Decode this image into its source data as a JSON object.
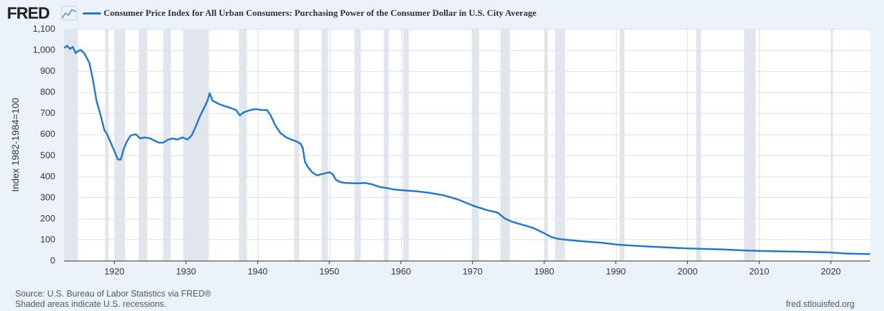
{
  "header": {
    "logo_text": "FRED",
    "logo_icon": "line-graph-icon",
    "series_title": "Consumer Price Index for All Urban Consumers: Purchasing Power of the Consumer Dollar in U.S. City Average",
    "series_color": "#1f77d0"
  },
  "footer": {
    "source": "Source: U.S. Bureau of Labor Statistics via FRED®",
    "shaded_note": "Shaded areas indicate U.S. recessions.",
    "site": "fred.stlouisfed.org"
  },
  "chart_data": {
    "type": "line",
    "ylabel": "Index 1982-1984=100",
    "xlabel": "",
    "xlim": [
      1913,
      2025.5
    ],
    "ylim": [
      0,
      1100
    ],
    "yticks": [
      0,
      100,
      200,
      300,
      400,
      500,
      600,
      700,
      800,
      900,
      1000,
      1100
    ],
    "ytick_labels": [
      "0",
      "100",
      "200",
      "300",
      "400",
      "500",
      "600",
      "700",
      "800",
      "900",
      "1,000",
      "1,100"
    ],
    "xticks": [
      1920,
      1930,
      1940,
      1950,
      1960,
      1970,
      1980,
      1990,
      2000,
      2010,
      2020
    ],
    "grid": true,
    "recession_color": "#e1e6ec",
    "recessions": [
      [
        1913.0,
        1914.9
      ],
      [
        1918.7,
        1919.2
      ],
      [
        1920.0,
        1921.5
      ],
      [
        1923.4,
        1924.6
      ],
      [
        1926.8,
        1927.9
      ],
      [
        1929.6,
        1933.2
      ],
      [
        1937.4,
        1938.5
      ],
      [
        1945.1,
        1945.8
      ],
      [
        1948.9,
        1949.8
      ],
      [
        1953.5,
        1954.4
      ],
      [
        1957.6,
        1958.3
      ],
      [
        1960.3,
        1961.1
      ],
      [
        1969.9,
        1970.9
      ],
      [
        1973.9,
        1975.2
      ],
      [
        1980.0,
        1980.5
      ],
      [
        1981.5,
        1982.9
      ],
      [
        1990.5,
        1991.2
      ],
      [
        2001.2,
        2001.9
      ],
      [
        2007.9,
        2009.5
      ],
      [
        2020.1,
        2020.3
      ]
    ],
    "series": [
      {
        "color": "#1f77d0",
        "x": [
          1913,
          1913.4,
          1913.8,
          1914.2,
          1914.6,
          1914.9,
          1915.3,
          1915.8,
          1916.5,
          1917.0,
          1917.5,
          1918.0,
          1918.6,
          1919.0,
          1919.5,
          1920.0,
          1920.5,
          1920.9,
          1921.3,
          1921.8,
          1922.3,
          1923.0,
          1923.6,
          1924.2,
          1925.0,
          1925.6,
          1926.2,
          1926.8,
          1927.5,
          1928.2,
          1928.8,
          1929.5,
          1930.2,
          1930.8,
          1931.4,
          1932.0,
          1932.6,
          1933.0,
          1933.3,
          1933.7,
          1934.5,
          1935.3,
          1936.2,
          1937.0,
          1937.5,
          1938.1,
          1939.0,
          1939.7,
          1940.6,
          1941.3,
          1941.8,
          1942.5,
          1943.2,
          1944.0,
          1944.7,
          1945.5,
          1946.0,
          1946.3,
          1946.6,
          1947.0,
          1947.6,
          1948.3,
          1948.8,
          1949.5,
          1950.0,
          1950.5,
          1950.9,
          1951.4,
          1952.0,
          1953.0,
          1954.0,
          1955.0,
          1956.0,
          1957.0,
          1958.0,
          1959.0,
          1960.0,
          1962.0,
          1964.0,
          1966.0,
          1968.0,
          1970.0,
          1972.0,
          1973.5,
          1974.5,
          1975.5,
          1977.0,
          1978.5,
          1980.0,
          1981.0,
          1982.0,
          1983.5,
          1985.0,
          1988.0,
          1990.0,
          1992.0,
          1995.0,
          2000.0,
          2005.0,
          2008.0,
          2010.0,
          2015.0,
          2020.0,
          2022.0,
          2025.5
        ],
        "values": [
          1010,
          1020,
          1005,
          1015,
          985,
          995,
          1000,
          985,
          940,
          860,
          760,
          700,
          620,
          600,
          560,
          520,
          480,
          480,
          530,
          570,
          595,
          600,
          580,
          585,
          580,
          570,
          560,
          560,
          575,
          580,
          575,
          585,
          575,
          595,
          640,
          690,
          730,
          760,
          795,
          760,
          745,
          735,
          725,
          715,
          690,
          705,
          715,
          720,
          715,
          715,
          690,
          640,
          605,
          585,
          575,
          565,
          555,
          535,
          470,
          445,
          420,
          405,
          410,
          415,
          420,
          410,
          385,
          375,
          370,
          368,
          367,
          369,
          362,
          350,
          345,
          338,
          335,
          330,
          322,
          310,
          290,
          262,
          240,
          228,
          200,
          185,
          170,
          155,
          130,
          112,
          103,
          98,
          93,
          85,
          77,
          72,
          66,
          58,
          53,
          48,
          46,
          43,
          39,
          34,
          31
        ]
      }
    ]
  }
}
